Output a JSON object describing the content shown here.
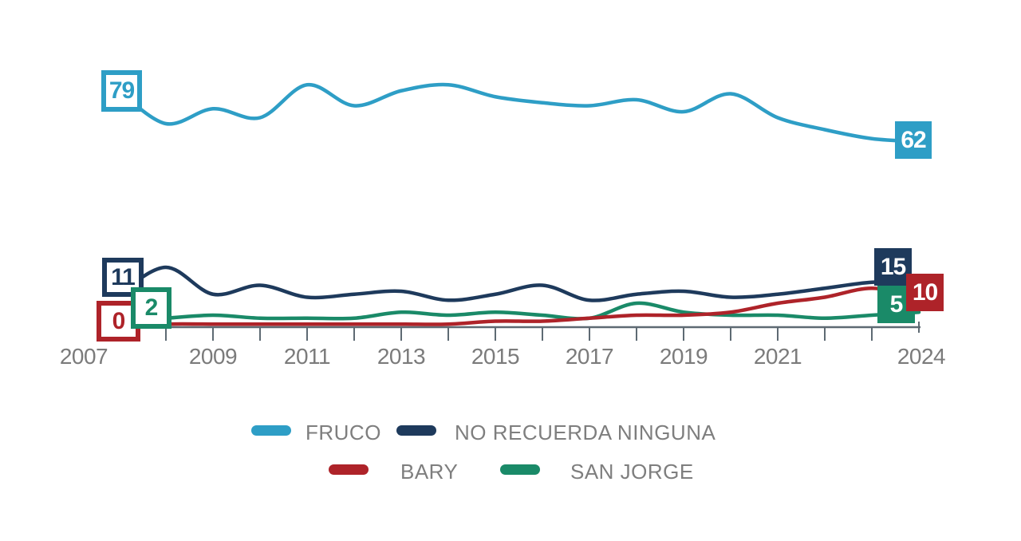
{
  "chart_data": {
    "type": "line",
    "title": "",
    "x": [
      2007,
      2008,
      2009,
      2010,
      2011,
      2012,
      2013,
      2014,
      2015,
      2016,
      2017,
      2018,
      2019,
      2020,
      2021,
      2022,
      2023,
      2024
    ],
    "x_tick_labels": [
      "2007",
      "2009",
      "2011",
      "2013",
      "2015",
      "2017",
      "2019",
      "2021",
      "2024"
    ],
    "ylim": [
      0,
      85
    ],
    "grid": false,
    "legend_position": "bottom",
    "axis_color": "#5e6a73",
    "tick_label_color": "#7b7b7b",
    "legend_text_color": "#7e7e7e",
    "series": [
      {
        "name": "FRUCO",
        "color": "#2e9ec6",
        "start_label": "79",
        "end_label": "62",
        "values": [
          79,
          68,
          73,
          70,
          81,
          74,
          79,
          81,
          77,
          75,
          74,
          76,
          72,
          78,
          70,
          66,
          63,
          62
        ]
      },
      {
        "name": "NO RECUERDA NINGUNA",
        "color": "#1e3a5c",
        "start_label": "11",
        "end_label": "15",
        "values": [
          11,
          20,
          11,
          14,
          10,
          11,
          12,
          9,
          11,
          14,
          9,
          11,
          12,
          10,
          11,
          13,
          15,
          15
        ]
      },
      {
        "name": "BARY",
        "color": "#ae2329",
        "start_label": "0",
        "end_label": "10",
        "values": [
          0,
          1,
          1,
          1,
          1,
          1,
          1,
          1,
          2,
          2,
          3,
          4,
          4,
          5,
          8,
          10,
          13,
          10
        ]
      },
      {
        "name": "SAN JORGE",
        "color": "#1a8a68",
        "start_label": "2",
        "end_label": "5",
        "values": [
          2,
          3,
          4,
          3,
          3,
          3,
          5,
          4,
          5,
          4,
          3,
          8,
          5,
          4,
          4,
          3,
          4,
          5
        ]
      }
    ]
  }
}
